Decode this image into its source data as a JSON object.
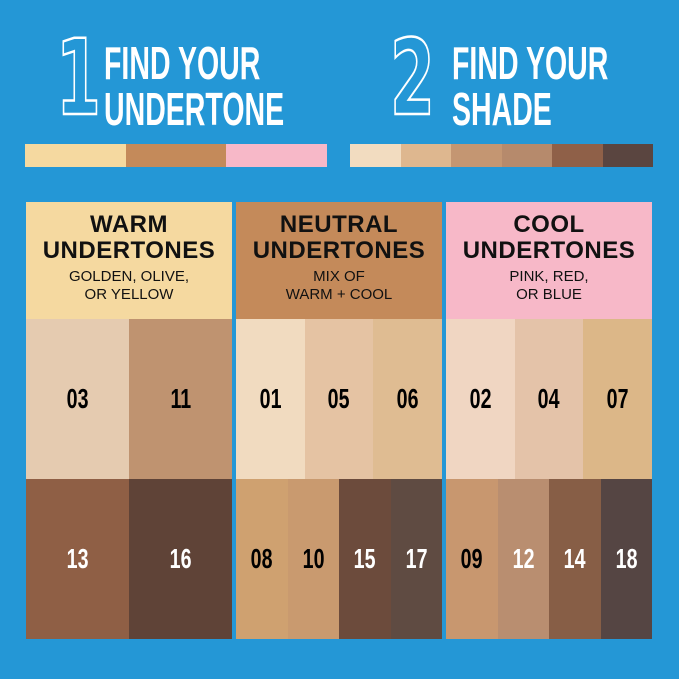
{
  "steps": [
    {
      "number": "1",
      "line1": "FIND YOUR",
      "line2": "UNDERTONE",
      "bar": [
        "#f5d9a0",
        "#c48a5a",
        "#f7b8c8"
      ]
    },
    {
      "number": "2",
      "line1": "FIND YOUR",
      "line2": "SHADE",
      "bar": [
        "#f2dcc0",
        "#deb78f",
        "#c49672",
        "#b68a6c",
        "#8f6048",
        "#5a4540"
      ]
    }
  ],
  "panels": [
    {
      "title1": "WARM",
      "title2": "UNDERTONES",
      "sub1": "GOLDEN, OLIVE,",
      "sub2": "OR YELLOW",
      "color": "#f5d9a0",
      "rows": [
        [
          {
            "shade": "03",
            "color": "#e5cbb0"
          },
          {
            "shade": "11",
            "color": "#bf9370"
          }
        ],
        [
          {
            "shade": "13",
            "color": "#8f5f45",
            "dark": true
          },
          {
            "shade": "16",
            "color": "#5f4337",
            "dark": true
          }
        ]
      ]
    },
    {
      "title1": "NEUTRAL",
      "title2": "UNDERTONES",
      "sub1": "MIX OF",
      "sub2": "WARM + COOL",
      "color": "#c48a5a",
      "rows": [
        [
          {
            "shade": "01",
            "color": "#f1dbc0"
          },
          {
            "shade": "05",
            "color": "#e5c3a3"
          },
          {
            "shade": "06",
            "color": "#dfbc92"
          }
        ],
        [
          {
            "shade": "08",
            "color": "#cfa170"
          },
          {
            "shade": "10",
            "color": "#c99a6f"
          },
          {
            "shade": "15",
            "color": "#6c4b3c",
            "dark": true
          },
          {
            "shade": "17",
            "color": "#5f4b42",
            "dark": true
          }
        ]
      ]
    },
    {
      "title1": "COOL",
      "title2": "UNDERTONES",
      "sub1": "PINK, RED,",
      "sub2": "OR BLUE",
      "color": "#f7b8c8",
      "rows": [
        [
          {
            "shade": "02",
            "color": "#f0d6c2"
          },
          {
            "shade": "04",
            "color": "#e4c3a9"
          },
          {
            "shade": "07",
            "color": "#dcb788"
          }
        ],
        [
          {
            "shade": "09",
            "color": "#c8976f"
          },
          {
            "shade": "12",
            "color": "#b98e70",
            "dark": true
          },
          {
            "shade": "14",
            "color": "#875e46",
            "dark": true
          },
          {
            "shade": "18",
            "color": "#554543",
            "dark": true
          }
        ]
      ]
    }
  ]
}
